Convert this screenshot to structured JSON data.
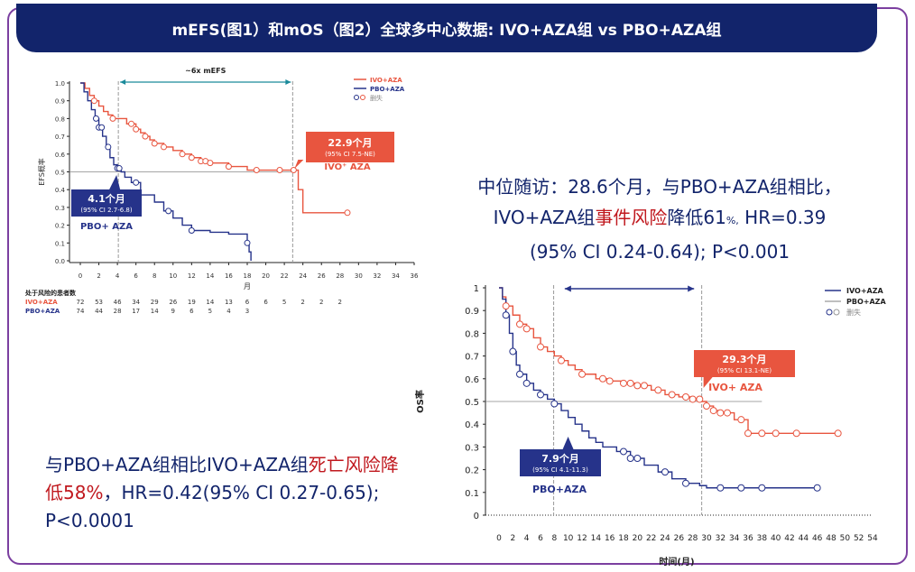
{
  "header": {
    "title": "mEFS(图1）和mOS（图2）全球多中心数据: IVO+AZA组 vs PBO+AZA组"
  },
  "summary_os": {
    "prefix": "与PBO+AZA组相比IVO+AZA组",
    "highlight": "死亡风险降低58%",
    "suffix": "，HR=0.42(95% CI 0.27-0.65); P<0.0001"
  },
  "summary_efs": {
    "line1": "中位随访：28.6个月，与PBO+AZA组相比，",
    "line2_prefix": "IVO+AZA组",
    "line2_highlight": "事件风险",
    "line2_mid": "降低61",
    "line2_sup": "%,",
    "line2_suffix": " HR=0.39",
    "line3": "(95% CI 0.24-0.64); P<0.001"
  },
  "colors": {
    "ivo": "#e8553f",
    "pbo": "#26338a",
    "title_bg": "#12246b",
    "highlight": "#c0181e",
    "median_line": "#999999"
  },
  "chart_data": [
    {
      "type": "line",
      "step": true,
      "ylabel": "EFS概率",
      "xlabel": "月",
      "xlim": [
        0,
        36
      ],
      "ylim": [
        0,
        1.0
      ],
      "xticks": [
        0,
        2,
        4,
        6,
        8,
        10,
        12,
        14,
        16,
        18,
        20,
        22,
        24,
        26,
        28,
        30,
        32,
        34,
        36
      ],
      "yticks": [
        0.0,
        0.1,
        0.2,
        0.3,
        0.4,
        0.5,
        0.6,
        0.7,
        0.8,
        0.9,
        1.0
      ],
      "legend": [
        "IVO+AZA",
        "PBO+AZA",
        "删失"
      ],
      "legend_position": "top-right",
      "series": [
        {
          "name": "IVO+AZA",
          "x": [
            0,
            0.5,
            1.0,
            1.5,
            2.0,
            2.5,
            3.0,
            3.5,
            4.0,
            5.0,
            6.0,
            6.5,
            7.0,
            7.5,
            8.0,
            9.0,
            10.0,
            11.0,
            12.0,
            13.0,
            14.0,
            16.0,
            18.0,
            20.0,
            22.0,
            23.0,
            23.5,
            24.0,
            28.8
          ],
          "y": [
            1.0,
            0.97,
            0.93,
            0.9,
            0.87,
            0.84,
            0.82,
            0.8,
            0.8,
            0.77,
            0.74,
            0.72,
            0.7,
            0.68,
            0.66,
            0.64,
            0.62,
            0.6,
            0.58,
            0.56,
            0.55,
            0.53,
            0.51,
            0.51,
            0.51,
            0.51,
            0.4,
            0.27,
            0.27
          ],
          "censor_x": [
            1.5,
            3.5,
            5.5,
            6.0,
            7.0,
            8.0,
            9.0,
            11.0,
            12.0,
            13.0,
            13.5,
            14.0,
            16.0,
            19.0,
            21.5,
            23.0,
            28.8
          ]
        },
        {
          "name": "PBO+AZA",
          "x": [
            0,
            0.4,
            0.8,
            1.2,
            1.6,
            2.0,
            2.4,
            2.8,
            3.2,
            3.6,
            4.0,
            4.4,
            4.8,
            5.5,
            6.5,
            8.0,
            9.0,
            10.0,
            11.0,
            12.0,
            14.0,
            16.0,
            18.0,
            18.2,
            18.4
          ],
          "y": [
            1.0,
            0.95,
            0.9,
            0.85,
            0.8,
            0.75,
            0.7,
            0.64,
            0.58,
            0.54,
            0.52,
            0.5,
            0.47,
            0.44,
            0.37,
            0.33,
            0.28,
            0.24,
            0.2,
            0.17,
            0.16,
            0.15,
            0.1,
            0.05,
            0.0
          ],
          "censor_x": [
            1.7,
            2.0,
            2.3,
            3.0,
            4.0,
            4.2,
            6.0,
            9.5,
            12.0,
            18.0
          ]
        }
      ],
      "annotations": [
        {
          "text": "~6x mEFS",
          "type": "bracket",
          "from_x": 4.1,
          "to_x": 22.9
        },
        {
          "text": "22.9个月",
          "sub": "(95% CI 7.5-NE)",
          "series": "IVO+AZA",
          "x": 22.9
        },
        {
          "text": "4.1个月",
          "sub": "(95% CI 2.7-6.8)",
          "series": "PBO+AZA",
          "x": 4.1
        },
        {
          "text": "IVO⁺ AZA",
          "series": "IVO+AZA"
        },
        {
          "text": "PBO+ AZA",
          "series": "PBO+AZA"
        }
      ],
      "risk_table": {
        "title": "处于风险的患者数",
        "rows": [
          {
            "name": "IVO+AZA",
            "values": [
              "72",
              "53",
              "46",
              "34",
              "29",
              "26",
              "19",
              "14",
              "13",
              "6",
              "6",
              "5",
              "2",
              "2",
              "2"
            ]
          },
          {
            "name": "PBO+AZA",
            "values": [
              "74",
              "44",
              "28",
              "17",
              "14",
              "9",
              "6",
              "5",
              "4",
              "3"
            ]
          }
        ]
      }
    },
    {
      "type": "line",
      "step": true,
      "ylabel": "OS率",
      "xlabel": "时间(月)",
      "xlim": [
        0,
        54
      ],
      "ylim": [
        0,
        1
      ],
      "xticks": [
        0,
        2,
        4,
        6,
        8,
        10,
        12,
        14,
        16,
        18,
        20,
        22,
        24,
        26,
        28,
        30,
        32,
        34,
        36,
        38,
        40,
        42,
        44,
        46,
        48,
        50,
        52,
        54
      ],
      "yticks": [
        0,
        0.1,
        0.2,
        0.3,
        0.4,
        0.5,
        0.6,
        0.7,
        0.8,
        0.9,
        1
      ],
      "legend": [
        "IVO+AZA",
        "PBO+AZA",
        "删失"
      ],
      "legend_position": "top-right",
      "series": [
        {
          "name": "IVO+AZA",
          "x": [
            0,
            0.5,
            1.0,
            2.0,
            3.0,
            4.0,
            5.0,
            6.0,
            7.0,
            8.0,
            9.0,
            10.0,
            11.0,
            12.0,
            14.0,
            16.0,
            18.0,
            20.0,
            22.0,
            24.0,
            26.0,
            28.0,
            29.3,
            30.0,
            31.0,
            32.0,
            34.0,
            36.0,
            49.0
          ],
          "y": [
            1.0,
            0.96,
            0.92,
            0.88,
            0.84,
            0.82,
            0.78,
            0.74,
            0.72,
            0.7,
            0.68,
            0.66,
            0.64,
            0.62,
            0.6,
            0.59,
            0.58,
            0.57,
            0.55,
            0.53,
            0.52,
            0.51,
            0.5,
            0.48,
            0.46,
            0.45,
            0.42,
            0.36,
            0.36
          ]
        },
        {
          "name": "PBO+AZA",
          "x": [
            0,
            0.5,
            1.0,
            1.5,
            2.0,
            2.5,
            3.0,
            4.0,
            5.0,
            6.0,
            7.0,
            8.0,
            9.0,
            10.0,
            11.0,
            12.0,
            13.0,
            14.0,
            15.0,
            17.0,
            19.0,
            21.0,
            23.0,
            25.0,
            27.0,
            29.0,
            30.0,
            46.0
          ],
          "y": [
            1.0,
            0.95,
            0.88,
            0.8,
            0.72,
            0.66,
            0.62,
            0.58,
            0.55,
            0.53,
            0.51,
            0.49,
            0.46,
            0.43,
            0.4,
            0.37,
            0.34,
            0.32,
            0.3,
            0.28,
            0.25,
            0.22,
            0.19,
            0.16,
            0.14,
            0.13,
            0.12,
            0.12
          ]
        }
      ],
      "annotations": [
        {
          "text": "29.3个月",
          "sub": "(95% CI 13.1-NE)",
          "series": "IVO+AZA",
          "x": 29.3
        },
        {
          "text": "7.9个月",
          "sub": "(95% CI 4.1-11.3)",
          "series": "PBO+AZA",
          "x": 7.9
        },
        {
          "text": "IVO+ AZA",
          "series": "IVO+AZA"
        },
        {
          "text": "PBO+AZA",
          "series": "PBO+AZA"
        }
      ]
    }
  ]
}
